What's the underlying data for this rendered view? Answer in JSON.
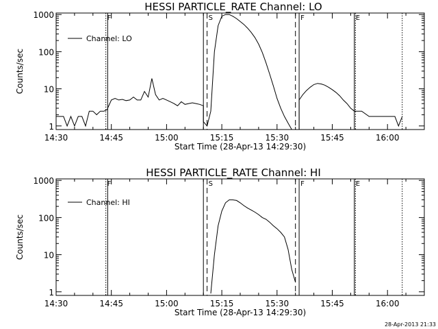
{
  "chart_data": [
    {
      "type": "line",
      "title": "HESSI PARTICLE_RATE Channel: LO",
      "xlabel": "Start Time (28-Apr-13 14:29:30)",
      "ylabel": "Counts/sec",
      "yscale": "log",
      "xlim": [
        "14:30",
        "16:10"
      ],
      "ylim": [
        0.8,
        1100
      ],
      "x_ticks": [
        "14:30",
        "14:45",
        "15:00",
        "15:15",
        "15:30",
        "15:45",
        "16:00"
      ],
      "y_ticks": [
        "1",
        "10",
        "100",
        "1000"
      ],
      "legend": "top-left",
      "grid": false,
      "markers": [
        {
          "label": "F",
          "time": "14:43.5",
          "style": "dotted"
        },
        {
          "label": "",
          "time": "14:44",
          "style": "solid"
        },
        {
          "label": "S",
          "time": "15:11",
          "style": "dashed"
        },
        {
          "label": "",
          "time": "15:10",
          "style": "solid"
        },
        {
          "label": "",
          "time": "15:35",
          "style": "dashed"
        },
        {
          "label": "F",
          "time": "15:36",
          "style": "solid"
        },
        {
          "label": "E",
          "time": "15:51",
          "style": "solid"
        },
        {
          "label": "",
          "time": "15:51.3",
          "style": "dotted"
        },
        {
          "label": "",
          "time": "16:04",
          "style": "dotted"
        }
      ],
      "series": [
        {
          "name": "Channel: LO",
          "x": [
            "14:30",
            "14:31",
            "14:32",
            "14:33",
            "14:34",
            "14:35",
            "14:36",
            "14:37",
            "14:38",
            "14:39",
            "14:40",
            "14:41",
            "14:42",
            "14:43",
            "14:44",
            "14:44",
            "14:45",
            "14:46",
            "14:47",
            "14:48",
            "14:49",
            "14:50",
            "14:51",
            "14:52",
            "14:53",
            "14:54",
            "14:55",
            "14:56",
            "14:57",
            "14:58",
            "14:59",
            "15:00",
            "15:01",
            "15:02",
            "15:03",
            "15:04",
            "15:05",
            "15:06",
            "15:07",
            "15:08",
            "15:09",
            "15:10",
            "15:10",
            "15:11",
            "15:12",
            "15:13",
            "15:14",
            "15:15",
            "15:16",
            "15:17",
            "15:18",
            "15:19",
            "15:20",
            "15:21",
            "15:22",
            "15:23",
            "15:24",
            "15:25",
            "15:26",
            "15:27",
            "15:28",
            "15:29",
            "15:30",
            "15:31",
            "15:32",
            "15:33",
            "15:34",
            "15:35",
            "15:36",
            "15:36",
            "15:37",
            "15:38",
            "15:39",
            "15:40",
            "15:41",
            "15:42",
            "15:43",
            "15:44",
            "15:45",
            "15:46",
            "15:47",
            "15:48",
            "15:49",
            "15:50",
            "15:51",
            "15:51",
            "15:53",
            "15:55",
            "15:56",
            "15:57",
            "15:58",
            "15:59",
            "16:00",
            "16:01",
            "16:02",
            "16:03",
            "16:04"
          ],
          "y": [
            1.8,
            1.8,
            1.8,
            1.0,
            1.8,
            1.0,
            1.8,
            1.8,
            1.0,
            2.5,
            2.5,
            2.0,
            2.5,
            2.5,
            2.8,
            3.0,
            5.0,
            5.5,
            5.0,
            5.2,
            4.8,
            5.0,
            6.0,
            5.0,
            5.0,
            8.5,
            6.0,
            19,
            7.0,
            5.0,
            5.5,
            5.0,
            4.5,
            4.0,
            3.5,
            4.5,
            3.8,
            4.0,
            4.2,
            4.0,
            3.8,
            3.5,
            1.3,
            1.0,
            2.5,
            100,
            500,
            900,
            1000,
            1000,
            900,
            780,
            650,
            540,
            430,
            330,
            240,
            160,
            95,
            50,
            25,
            12,
            5.5,
            3.0,
            1.8,
            1.2,
            0.8,
            0.8,
            0.8,
            5.0,
            7.0,
            9.0,
            11,
            13,
            14,
            13.5,
            12.5,
            11,
            9.5,
            8.0,
            6.5,
            5.0,
            4.0,
            3.0,
            2.5,
            2.5,
            2.5,
            1.8,
            1.8,
            1.8,
            1.8,
            1.8,
            1.8,
            1.8,
            1.8,
            1.0,
            1.8
          ]
        }
      ]
    },
    {
      "type": "line",
      "title": "HESSI PARTICLE_RATE Channel: HI",
      "xlabel": "Start Time (28-Apr-13 14:29:30)",
      "ylabel": "Counts/sec",
      "yscale": "log",
      "xlim": [
        "14:30",
        "16:10"
      ],
      "ylim": [
        0.8,
        1100
      ],
      "x_ticks": [
        "14:30",
        "14:45",
        "15:00",
        "15:15",
        "15:30",
        "15:45",
        "16:00"
      ],
      "y_ticks": [
        "1",
        "10",
        "100",
        "1000"
      ],
      "legend": "top-left",
      "grid": false,
      "markers": [
        {
          "label": "F",
          "time": "14:43.5",
          "style": "dotted"
        },
        {
          "label": "",
          "time": "14:44",
          "style": "solid"
        },
        {
          "label": "S",
          "time": "15:11",
          "style": "dashed"
        },
        {
          "label": "",
          "time": "15:10",
          "style": "solid"
        },
        {
          "label": "",
          "time": "15:35",
          "style": "dashed"
        },
        {
          "label": "F",
          "time": "15:36",
          "style": "solid"
        },
        {
          "label": "E",
          "time": "15:51",
          "style": "solid"
        },
        {
          "label": "",
          "time": "15:51.3",
          "style": "dotted"
        },
        {
          "label": "",
          "time": "16:04",
          "style": "dotted"
        }
      ],
      "series": [
        {
          "name": "Channel: HI",
          "x": [
            "15:12",
            "15:13",
            "15:14",
            "15:15",
            "15:16",
            "15:17",
            "15:18",
            "15:19",
            "15:20",
            "15:21",
            "15:22",
            "15:23",
            "15:24",
            "15:25",
            "15:26",
            "15:27",
            "15:28",
            "15:29",
            "15:30",
            "15:31",
            "15:32",
            "15:33",
            "15:34",
            "15:35"
          ],
          "y": [
            0.9,
            10,
            60,
            150,
            250,
            300,
            300,
            290,
            250,
            210,
            180,
            160,
            140,
            120,
            100,
            90,
            75,
            60,
            50,
            40,
            30,
            14,
            4,
            1.8
          ]
        }
      ]
    }
  ],
  "timestamp": "28-Apr-2013 21:33"
}
